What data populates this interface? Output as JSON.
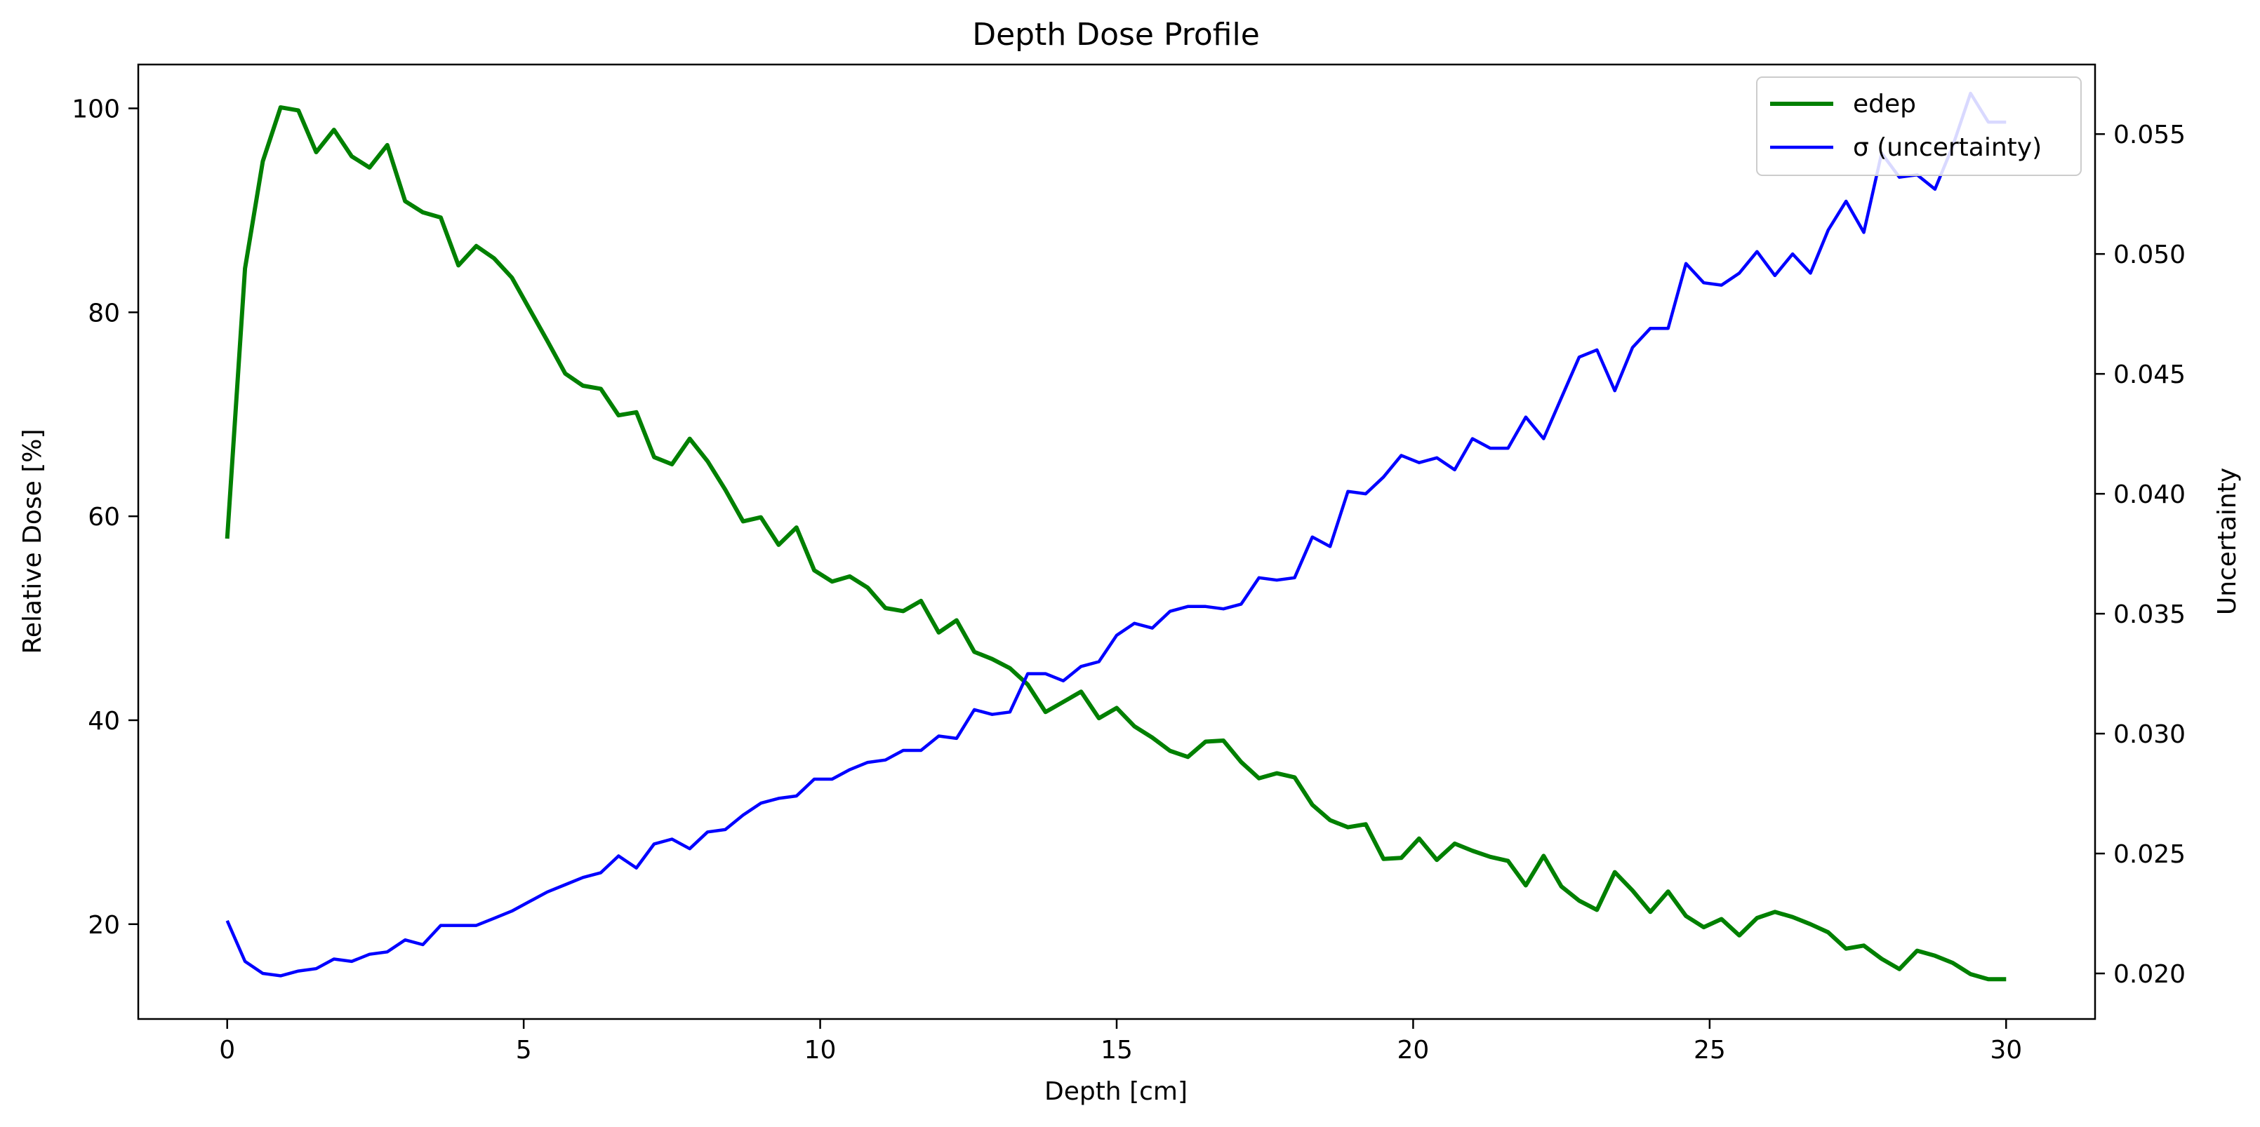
{
  "chart_data": {
    "type": "line",
    "title": "Depth Dose Profile",
    "xlabel": "Depth [cm]",
    "ylabel": "Relative Dose [%]",
    "y2label": "Uncertainty",
    "xlim": [
      -1.5,
      31.5
    ],
    "ylim": [
      10.7,
      104.3
    ],
    "y2lim": [
      0.0181,
      0.0579
    ],
    "xticks": [
      0,
      5,
      10,
      15,
      20,
      25,
      30
    ],
    "yticks": [
      20,
      40,
      60,
      80,
      100
    ],
    "y2ticks": [
      0.02,
      0.025,
      0.03,
      0.035,
      0.04,
      0.045,
      0.05,
      0.055
    ],
    "y2tick_labels": [
      "0.020",
      "0.025",
      "0.030",
      "0.035",
      "0.040",
      "0.045",
      "0.050",
      "0.055"
    ],
    "grid": false,
    "legend_position": "upper right",
    "x": [
      0.0,
      0.3,
      0.6,
      0.9,
      1.2,
      1.5,
      1.8,
      2.1,
      2.4,
      2.7,
      3.0,
      3.3,
      3.6,
      3.9,
      4.2,
      4.5,
      4.8,
      5.1,
      5.4,
      5.7,
      6.0,
      6.3,
      6.6,
      6.9,
      7.2,
      7.5,
      7.8,
      8.1,
      8.4,
      8.7,
      9.0,
      9.3,
      9.6,
      9.9,
      10.2,
      10.5,
      10.8,
      11.1,
      11.4,
      11.7,
      12.0,
      12.3,
      12.6,
      12.9,
      13.2,
      13.5,
      13.8,
      14.1,
      14.4,
      14.7,
      15.0,
      15.3,
      15.6,
      15.9,
      16.2,
      16.5,
      16.8,
      17.1,
      17.4,
      17.7,
      18.0,
      18.3,
      18.6,
      18.9,
      19.2,
      19.5,
      19.8,
      20.1,
      20.4,
      20.7,
      21.0,
      21.3,
      21.6,
      21.9,
      22.2,
      22.5,
      22.8,
      23.1,
      23.4,
      23.7,
      24.0,
      24.3,
      24.6,
      24.9,
      25.2,
      25.5,
      25.8,
      26.1,
      26.4,
      26.7,
      27.0,
      27.3,
      27.6,
      27.9,
      28.2,
      28.5,
      28.8,
      29.1,
      29.4,
      29.7,
      30.0
    ],
    "series": [
      {
        "name": "edep",
        "axis": "left",
        "color": "#008000",
        "values": [
          57.8,
          84.3,
          94.8,
          100.1,
          99.8,
          95.7,
          97.9,
          95.3,
          94.2,
          96.4,
          90.9,
          89.8,
          89.3,
          84.6,
          86.5,
          85.3,
          83.4,
          80.3,
          77.2,
          74.0,
          72.8,
          72.5,
          69.9,
          70.2,
          65.8,
          65.1,
          67.6,
          65.4,
          62.6,
          59.5,
          59.9,
          57.2,
          58.9,
          54.7,
          53.6,
          54.1,
          53.0,
          51.0,
          50.7,
          51.7,
          48.6,
          49.8,
          46.7,
          46.0,
          45.1,
          43.5,
          40.8,
          41.8,
          42.8,
          40.2,
          41.2,
          39.4,
          38.3,
          37.0,
          36.4,
          37.9,
          38.0,
          35.9,
          34.3,
          34.8,
          34.4,
          31.7,
          30.2,
          29.5,
          29.8,
          26.4,
          26.5,
          28.4,
          26.3,
          27.9,
          27.2,
          26.6,
          26.2,
          23.8,
          26.7,
          23.7,
          22.3,
          21.4,
          25.1,
          23.3,
          21.2,
          23.2,
          20.8,
          19.7,
          20.5,
          18.9,
          20.6,
          21.2,
          20.7,
          20.0,
          19.2,
          17.6,
          17.9,
          16.6,
          15.6,
          17.4,
          16.9,
          16.2,
          15.1,
          14.6,
          14.6
        ]
      },
      {
        "name": "σ (uncertainty)",
        "axis": "right",
        "color": "#0000ff",
        "values": [
          0.0222,
          0.0205,
          0.02,
          0.0199,
          0.0201,
          0.0202,
          0.0206,
          0.0205,
          0.0208,
          0.0209,
          0.0214,
          0.0212,
          0.022,
          0.022,
          0.022,
          0.0223,
          0.0226,
          0.023,
          0.0234,
          0.0237,
          0.024,
          0.0242,
          0.0249,
          0.0244,
          0.0254,
          0.0256,
          0.0252,
          0.0259,
          0.026,
          0.0266,
          0.0271,
          0.0273,
          0.0274,
          0.0281,
          0.0281,
          0.0285,
          0.0288,
          0.0289,
          0.0293,
          0.0293,
          0.0299,
          0.0298,
          0.031,
          0.0308,
          0.0309,
          0.0325,
          0.0325,
          0.0322,
          0.0328,
          0.033,
          0.0341,
          0.0346,
          0.0344,
          0.0351,
          0.0353,
          0.0353,
          0.0352,
          0.0354,
          0.0365,
          0.0364,
          0.0365,
          0.0382,
          0.0378,
          0.0401,
          0.04,
          0.0407,
          0.0416,
          0.0413,
          0.0415,
          0.041,
          0.0423,
          0.0419,
          0.0419,
          0.0432,
          0.0423,
          0.044,
          0.0457,
          0.046,
          0.0443,
          0.0461,
          0.0469,
          0.0469,
          0.0496,
          0.0488,
          0.0487,
          0.0492,
          0.0501,
          0.0491,
          0.05,
          0.0492,
          0.051,
          0.0522,
          0.0509,
          0.0542,
          0.0532,
          0.0533,
          0.0527,
          0.0545,
          0.0567,
          0.0555,
          0.0555
        ]
      }
    ]
  }
}
